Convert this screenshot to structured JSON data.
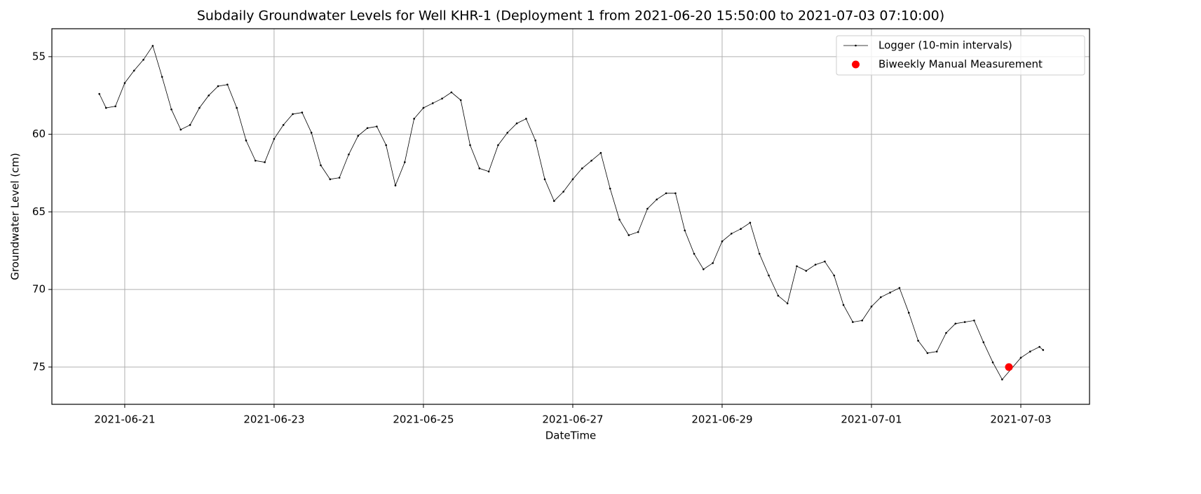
{
  "chart_data": {
    "type": "line",
    "title": "Subdaily Groundwater Levels for Well KHR-1 (Deployment 1 from 2021-06-20 15:50:00 to 2021-07-03 07:10:00)",
    "x_label": "DateTime",
    "y_label": "Groundwater Level (cm)",
    "xlim": [
      "2021-06-20 00:35",
      "2021-07-03 22:05"
    ],
    "xticks": [
      "2021-06-21",
      "2021-06-23",
      "2021-06-25",
      "2021-06-27",
      "2021-06-29",
      "2021-07-01",
      "2021-07-03"
    ],
    "ylim": [
      77.4,
      53.2
    ],
    "yticks": [
      55,
      60,
      65,
      70,
      75
    ],
    "grid": true,
    "legend": "upper right",
    "series": [
      {
        "name": "Logger (10-min intervals)",
        "color": "#000000",
        "type": "line",
        "x": [
          "2021-06-20 15:50",
          "2021-06-20 18:00",
          "2021-06-20 21:00",
          "2021-06-21 00:00",
          "2021-06-21 03:00",
          "2021-06-21 06:00",
          "2021-06-21 09:00",
          "2021-06-21 12:00",
          "2021-06-21 15:00",
          "2021-06-21 18:00",
          "2021-06-21 21:00",
          "2021-06-22 00:00",
          "2021-06-22 03:00",
          "2021-06-22 06:00",
          "2021-06-22 09:00",
          "2021-06-22 12:00",
          "2021-06-22 15:00",
          "2021-06-22 18:00",
          "2021-06-22 21:00",
          "2021-06-23 00:00",
          "2021-06-23 03:00",
          "2021-06-23 06:00",
          "2021-06-23 09:00",
          "2021-06-23 12:00",
          "2021-06-23 15:00",
          "2021-06-23 18:00",
          "2021-06-23 21:00",
          "2021-06-24 00:00",
          "2021-06-24 03:00",
          "2021-06-24 06:00",
          "2021-06-24 09:00",
          "2021-06-24 12:00",
          "2021-06-24 15:00",
          "2021-06-24 18:00",
          "2021-06-24 21:00",
          "2021-06-25 00:00",
          "2021-06-25 03:00",
          "2021-06-25 06:00",
          "2021-06-25 09:00",
          "2021-06-25 12:00",
          "2021-06-25 15:00",
          "2021-06-25 18:00",
          "2021-06-25 21:00",
          "2021-06-26 00:00",
          "2021-06-26 03:00",
          "2021-06-26 06:00",
          "2021-06-26 09:00",
          "2021-06-26 12:00",
          "2021-06-26 15:00",
          "2021-06-26 18:00",
          "2021-06-26 21:00",
          "2021-06-27 00:00",
          "2021-06-27 03:00",
          "2021-06-27 06:00",
          "2021-06-27 09:00",
          "2021-06-27 12:00",
          "2021-06-27 15:00",
          "2021-06-27 18:00",
          "2021-06-27 21:00",
          "2021-06-28 00:00",
          "2021-06-28 03:00",
          "2021-06-28 06:00",
          "2021-06-28 09:00",
          "2021-06-28 12:00",
          "2021-06-28 15:00",
          "2021-06-28 18:00",
          "2021-06-28 21:00",
          "2021-06-29 00:00",
          "2021-06-29 03:00",
          "2021-06-29 06:00",
          "2021-06-29 09:00",
          "2021-06-29 12:00",
          "2021-06-29 15:00",
          "2021-06-29 18:00",
          "2021-06-29 21:00",
          "2021-06-30 00:00",
          "2021-06-30 03:00",
          "2021-06-30 06:00",
          "2021-06-30 09:00",
          "2021-06-30 12:00",
          "2021-06-30 15:00",
          "2021-06-30 18:00",
          "2021-06-30 21:00",
          "2021-07-01 00:00",
          "2021-07-01 03:00",
          "2021-07-01 06:00",
          "2021-07-01 09:00",
          "2021-07-01 12:00",
          "2021-07-01 15:00",
          "2021-07-01 18:00",
          "2021-07-01 21:00",
          "2021-07-02 00:00",
          "2021-07-02 03:00",
          "2021-07-02 06:00",
          "2021-07-02 09:00",
          "2021-07-02 12:00",
          "2021-07-02 15:00",
          "2021-07-02 18:00",
          "2021-07-02 21:00",
          "2021-07-03 00:00",
          "2021-07-03 03:00",
          "2021-07-03 06:00",
          "2021-07-03 07:10"
        ],
        "values": [
          57.4,
          58.3,
          58.2,
          56.7,
          55.9,
          55.2,
          54.3,
          56.3,
          58.4,
          59.7,
          59.4,
          58.3,
          57.5,
          56.9,
          56.8,
          58.3,
          60.4,
          61.7,
          61.8,
          60.3,
          59.4,
          58.7,
          58.6,
          59.9,
          62.0,
          62.9,
          62.8,
          61.3,
          60.1,
          59.6,
          59.5,
          60.7,
          63.3,
          61.8,
          59.0,
          58.3,
          58.0,
          57.7,
          57.3,
          57.8,
          60.7,
          62.2,
          62.4,
          60.7,
          59.9,
          59.3,
          59.0,
          60.4,
          62.9,
          64.3,
          63.7,
          62.9,
          62.2,
          61.7,
          61.2,
          63.5,
          65.5,
          66.5,
          66.3,
          64.8,
          64.2,
          63.8,
          63.8,
          66.2,
          67.7,
          68.7,
          68.3,
          66.9,
          66.4,
          66.1,
          65.7,
          67.7,
          69.1,
          70.4,
          70.9,
          68.5,
          68.8,
          68.4,
          68.2,
          69.1,
          71.0,
          72.1,
          72.0,
          71.1,
          70.5,
          70.2,
          69.9,
          71.5,
          73.3,
          74.1,
          74.0,
          72.8,
          72.2,
          72.1,
          72.0,
          73.4,
          74.7,
          75.8,
          75.1,
          74.4,
          74.0,
          73.7,
          73.9
        ]
      },
      {
        "name": "Biweekly Manual Measurement",
        "color": "#ff0000",
        "type": "scatter",
        "x": [
          "2021-07-02 20:10"
        ],
        "values": [
          75.0
        ]
      }
    ]
  }
}
